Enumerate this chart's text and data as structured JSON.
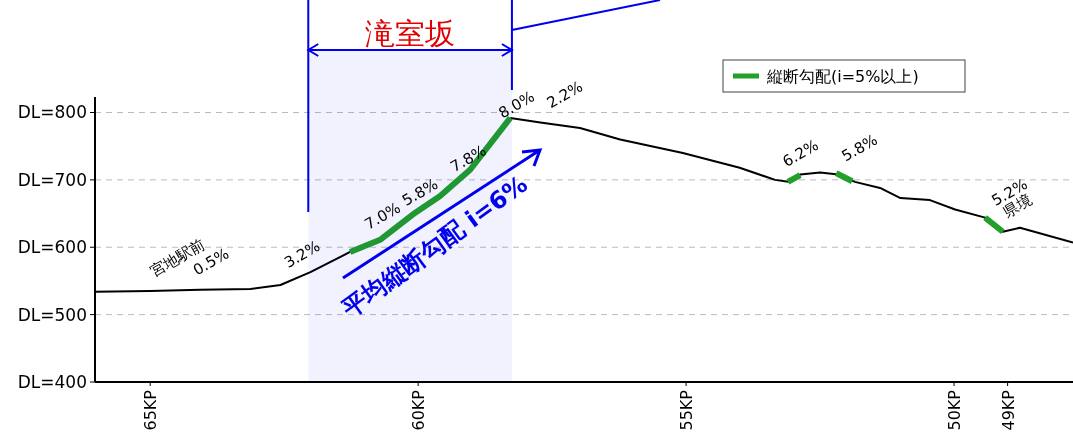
{
  "chart_data": {
    "type": "line",
    "bands": [
      {
        "axis": "x",
        "from": 62.05,
        "to": 58.25,
        "label": "滝室坂",
        "color": "#0000ee"
      }
    ],
    "annotations": [
      "平均縦断勾配 i=6%",
      {
        "text": "宮地駅前",
        "x": 65,
        "y": 535
      },
      {
        "text": "0.5%",
        "x": 64.2,
        "y": 537
      },
      {
        "text": "3.2%",
        "x": 62.5,
        "y": 548
      },
      {
        "text": "7.0%",
        "x": 61.0,
        "y": 605
      },
      {
        "text": "5.8%",
        "x": 60.3,
        "y": 640
      },
      {
        "text": "7.8%",
        "x": 59.4,
        "y": 690
      },
      {
        "text": "8.0%",
        "x": 58.5,
        "y": 770
      },
      {
        "text": "2.2%",
        "x": 57.6,
        "y": 785
      },
      {
        "text": "6.2%",
        "x": 53.2,
        "y": 698
      },
      {
        "text": "5.8%",
        "x": 52.1,
        "y": 706
      },
      {
        "text": "5.2%",
        "x": 49.3,
        "y": 640
      },
      {
        "text": "県境",
        "x": 49.09,
        "y": 623
      }
    ],
    "series": [
      {
        "color": "#000000",
        "x": [
          66.03,
          65,
          64.07,
          63.13,
          62.57,
          62.01,
          61.27,
          60.71,
          60.06,
          59.59,
          59.03,
          58.28,
          57.72,
          56.98,
          56.23,
          55.06,
          54,
          53.34,
          53.06,
          52.87,
          52.5,
          52.16,
          51.85,
          51.38,
          51,
          50.45,
          49.98,
          49.42,
          49.09,
          48.77,
          47.78
        ],
        "values": [
          534,
          535,
          537,
          538,
          544,
          563,
          593,
          null,
          null,
          null,
          null,
          792,
          785,
          777,
          760,
          740,
          718,
          700,
          697,
          708,
          711,
          708,
          697,
          688,
          673,
          670,
          656,
          644,
          623,
          629,
          607
        ]
      },
      {
        "name": "縦断勾配(i=5%以上)",
        "color": "#22a02a",
        "x": [
          61.27,
          60.71,
          60.06,
          59.59,
          59.03,
          58.28,
          null,
          53.1,
          52.87,
          null,
          52.2,
          51.9,
          null,
          49.42,
          49.09
        ],
        "values": [
          593,
          611,
          651,
          676,
          715,
          792,
          null,
          697,
          707,
          null,
          710,
          698,
          null,
          644,
          623
        ]
      }
    ],
    "xlim": [
      66.03,
      47.78
    ],
    "xticks": [
      {
        "value": 65,
        "label": "65KP"
      },
      {
        "value": 60,
        "label": "60KP"
      },
      {
        "value": 55,
        "label": "55KP"
      },
      {
        "value": 50,
        "label": "50KP"
      },
      {
        "value": 49,
        "label": "49KP"
      }
    ],
    "ylim": [
      400,
      823
    ],
    "yticks": [
      {
        "value": 400,
        "label": "DL=400"
      },
      {
        "value": 500,
        "label": "DL=500"
      },
      {
        "value": 600,
        "label": "DL=600"
      },
      {
        "value": 700,
        "label": "DL=700"
      },
      {
        "value": 800,
        "label": "DL=800"
      }
    ],
    "grid": "y",
    "legend": "top right",
    "marker": "none",
    "line_style": "solid"
  }
}
